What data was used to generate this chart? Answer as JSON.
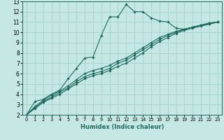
{
  "xlabel": "Humidex (Indice chaleur)",
  "xlim": [
    -0.5,
    23.5
  ],
  "ylim": [
    2,
    13
  ],
  "xticks": [
    0,
    1,
    2,
    3,
    4,
    5,
    6,
    7,
    8,
    9,
    10,
    11,
    12,
    13,
    14,
    15,
    16,
    17,
    18,
    19,
    20,
    21,
    22,
    23
  ],
  "yticks": [
    2,
    3,
    4,
    5,
    6,
    7,
    8,
    9,
    10,
    11,
    12,
    13
  ],
  "background_color": "#c5e8e4",
  "grid_color": "#a8d5d0",
  "line_color": "#1e6b5e",
  "line1_x": [
    0,
    1,
    2,
    3,
    4,
    5,
    6,
    7,
    8,
    9,
    10,
    11,
    12,
    13,
    14,
    15,
    16,
    17,
    18,
    19,
    20,
    21,
    22,
    23
  ],
  "line1_y": [
    2.0,
    3.3,
    3.5,
    4.0,
    4.4,
    5.5,
    6.5,
    7.5,
    7.6,
    9.7,
    11.5,
    11.5,
    12.7,
    12.0,
    12.0,
    11.4,
    11.1,
    11.0,
    10.4,
    10.3,
    10.5,
    10.7,
    10.8,
    11.0
  ],
  "line2_x": [
    0,
    1,
    2,
    3,
    4,
    5,
    6,
    7,
    8,
    9,
    10,
    11,
    12,
    13,
    14,
    15,
    16,
    17,
    18,
    19,
    20,
    21,
    22,
    23
  ],
  "line2_y": [
    2.0,
    2.8,
    3.4,
    3.9,
    4.3,
    4.8,
    5.4,
    6.0,
    6.3,
    6.5,
    6.8,
    7.2,
    7.5,
    8.0,
    8.5,
    9.0,
    9.5,
    9.8,
    10.1,
    10.3,
    10.5,
    10.7,
    10.9,
    11.0
  ],
  "line3_x": [
    0,
    1,
    2,
    3,
    4,
    5,
    6,
    7,
    8,
    9,
    10,
    11,
    12,
    13,
    14,
    15,
    16,
    17,
    18,
    19,
    20,
    21,
    22,
    23
  ],
  "line3_y": [
    2.0,
    2.7,
    3.3,
    3.7,
    4.2,
    4.6,
    5.2,
    5.7,
    6.0,
    6.2,
    6.5,
    7.0,
    7.3,
    7.8,
    8.3,
    8.8,
    9.3,
    9.7,
    10.0,
    10.3,
    10.5,
    10.7,
    10.9,
    11.0
  ],
  "line4_x": [
    0,
    1,
    2,
    3,
    4,
    5,
    6,
    7,
    8,
    9,
    10,
    11,
    12,
    13,
    14,
    15,
    16,
    17,
    18,
    19,
    20,
    21,
    22,
    23
  ],
  "line4_y": [
    2.0,
    2.6,
    3.2,
    3.6,
    4.0,
    4.5,
    5.0,
    5.5,
    5.8,
    6.0,
    6.3,
    6.7,
    7.0,
    7.5,
    8.0,
    8.6,
    9.1,
    9.5,
    9.9,
    10.2,
    10.4,
    10.6,
    10.8,
    11.0
  ],
  "xlabel_fontsize": 6.0,
  "tick_fontsize_x": 4.8,
  "tick_fontsize_y": 5.5
}
